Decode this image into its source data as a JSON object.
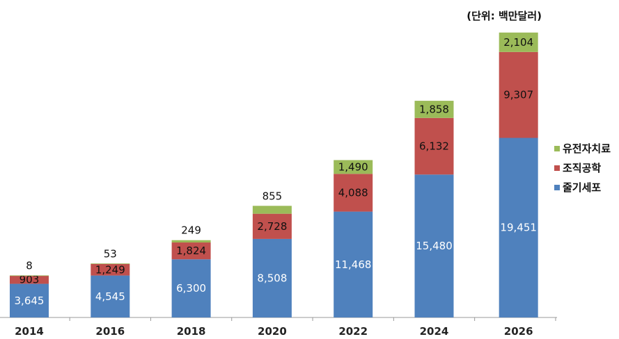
{
  "chart_data": {
    "type": "bar",
    "stacked": true,
    "unit_label": "(단위: 백만달러)",
    "categories": [
      "2014",
      "2016",
      "2018",
      "2020",
      "2022",
      "2024",
      "2026"
    ],
    "series": [
      {
        "name": "줄기세포",
        "color": "#4f81bd",
        "values": [
          3645,
          4545,
          6300,
          8508,
          11468,
          15480,
          19451
        ],
        "labels": [
          "3,645",
          "4,545",
          "6,300",
          "8,508",
          "11,468",
          "15,480",
          "19,451"
        ]
      },
      {
        "name": "조직공학",
        "color": "#c0504d",
        "values": [
          903,
          1249,
          1824,
          2728,
          4088,
          6132,
          9307
        ],
        "labels": [
          "903",
          "1,249",
          "1,824",
          "2,728",
          "4,088",
          "6,132",
          "9,307"
        ]
      },
      {
        "name": "유전자치료",
        "color": "#9bbb59",
        "values": [
          8,
          53,
          249,
          855,
          1490,
          1858,
          2104
        ],
        "labels": [
          "8",
          "53",
          "249",
          "855",
          "1,490",
          "1,858",
          "2,104"
        ]
      }
    ],
    "legend_order": [
      "유전자치료",
      "조직공학",
      "줄기세포"
    ],
    "legend_position": "right",
    "grid": false
  }
}
